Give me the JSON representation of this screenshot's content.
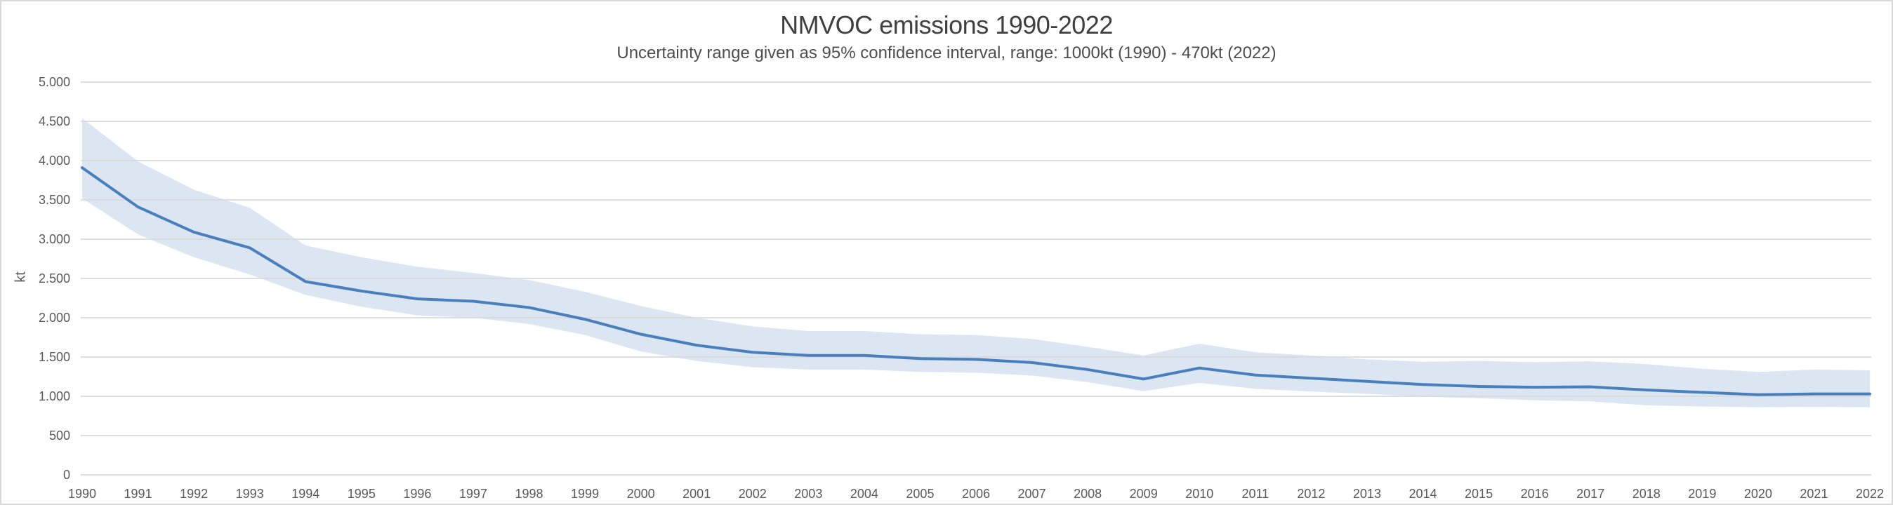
{
  "chart": {
    "title": "NMVOC emissions 1990-2022",
    "subtitle": "Uncertainty range given as 95% confidence interval, range: 1000kt (1990) - 470kt (2022)",
    "y_axis_title": "kt",
    "colors": {
      "line": "#4a7fbe",
      "band": "#dce6f3",
      "gridline": "#d9d9d9",
      "axis_text": "#595959",
      "title_text": "#404040",
      "border": "#d9d9d9",
      "background": "#ffffff"
    }
  },
  "chart_data": {
    "type": "line",
    "title": "NMVOC emissions 1990-2022",
    "subtitle": "Uncertainty range given as 95% confidence interval, range: 1000kt (1990) - 470kt (2022)",
    "xlabel": "",
    "ylabel": "kt",
    "x": [
      1990,
      1991,
      1992,
      1993,
      1994,
      1995,
      1996,
      1997,
      1998,
      1999,
      2000,
      2001,
      2002,
      2003,
      2004,
      2005,
      2006,
      2007,
      2008,
      2009,
      2010,
      2011,
      2012,
      2013,
      2014,
      2015,
      2016,
      2017,
      2018,
      2019,
      2020,
      2021,
      2022
    ],
    "series": [
      {
        "name": "NMVOC emissions (kt)",
        "role": "line",
        "values": [
          3910,
          3410,
          3090,
          2890,
          2460,
          2340,
          2240,
          2210,
          2130,
          1980,
          1790,
          1650,
          1560,
          1520,
          1520,
          1480,
          1470,
          1430,
          1340,
          1220,
          1360,
          1270,
          1230,
          1190,
          1150,
          1125,
          1115,
          1120,
          1080,
          1050,
          1020,
          1030,
          1030
        ]
      },
      {
        "name": "95% CI upper bound (kt)",
        "role": "band-upper",
        "values": [
          4540,
          3990,
          3630,
          3400,
          2920,
          2770,
          2650,
          2570,
          2480,
          2330,
          2150,
          2000,
          1890,
          1830,
          1830,
          1790,
          1780,
          1730,
          1630,
          1520,
          1670,
          1560,
          1520,
          1470,
          1440,
          1450,
          1435,
          1445,
          1410,
          1350,
          1310,
          1340,
          1330
        ]
      },
      {
        "name": "95% CI lower bound (kt)",
        "role": "band-lower",
        "values": [
          3520,
          3060,
          2770,
          2550,
          2290,
          2140,
          2030,
          2000,
          1920,
          1780,
          1570,
          1450,
          1370,
          1340,
          1340,
          1310,
          1300,
          1265,
          1180,
          1065,
          1170,
          1095,
          1060,
          1030,
          995,
          975,
          950,
          935,
          885,
          870,
          860,
          865,
          860
        ]
      }
    ],
    "ylim": [
      0,
      5000
    ],
    "ytick_values": [
      0,
      500,
      1000,
      1500,
      2000,
      2500,
      3000,
      3500,
      4000,
      4500,
      5000
    ],
    "ytick_labels": [
      "0",
      "500",
      "1.000",
      "1.500",
      "2.000",
      "2.500",
      "3.000",
      "3.500",
      "4.000",
      "4.500",
      "5.000"
    ],
    "grid": "horizontal",
    "legend": "none"
  }
}
